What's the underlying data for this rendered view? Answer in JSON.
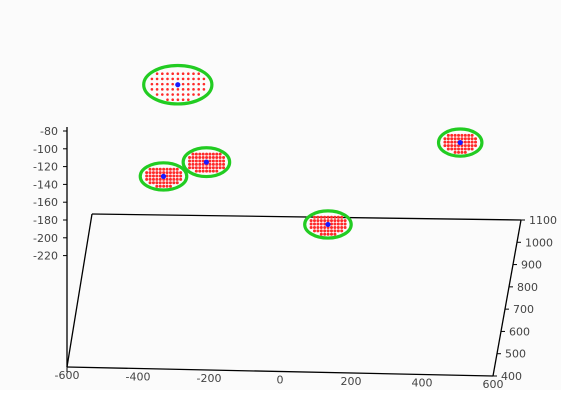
{
  "chart_data": {
    "type": "scatter",
    "title": "",
    "xlabel": "",
    "ylabel": "",
    "zlabel": "",
    "grid": false,
    "y_ticks": [
      -80,
      -100,
      -120,
      -140,
      -160,
      -180,
      -200,
      -220
    ],
    "x_ticks": [
      -600,
      -400,
      -200,
      0,
      200,
      400,
      600
    ],
    "z_ticks": [
      400,
      500,
      600,
      700,
      800,
      900,
      1000,
      1100
    ],
    "x_tick_labels": [
      "-600",
      "-400",
      "-200",
      "0",
      "200",
      "400",
      "600"
    ],
    "y_tick_labels": [
      "-80",
      "-100",
      "-120",
      "-140",
      "-160",
      "-180",
      "-200",
      "-220"
    ],
    "z_tick_labels": [
      "400",
      "500",
      "600",
      "700",
      "800",
      "900",
      "1000",
      "1100"
    ],
    "series": [
      {
        "marker": "cluster",
        "point_color": "#ff2a2a",
        "outline_color": "#22cc22",
        "center_color": "#1a1aff",
        "clusters": [
          {
            "x": -360,
            "y": -28,
            "z": 1100,
            "rx_units": 22,
            "ry_units": 24,
            "density": "sparse"
          },
          {
            "x": -280,
            "y": -115,
            "z": 1100,
            "rx_units": 15,
            "ry_units": 18,
            "density": "dense"
          },
          {
            "x": -400,
            "y": -131,
            "z": 1100,
            "rx_units": 15,
            "ry_units": 17,
            "density": "dense"
          },
          {
            "x": 430,
            "y": -93,
            "z": 1100,
            "rx_units": 14,
            "ry_units": 17,
            "density": "dense"
          },
          {
            "x": 60,
            "y": -185,
            "z": 1100,
            "rx_units": 15,
            "ry_units": 17,
            "density": "dense"
          }
        ]
      }
    ],
    "colors": {
      "points": "#ff2a2a",
      "outline": "#22cc22",
      "center": "#1a1aff",
      "axis": "#000000"
    }
  }
}
